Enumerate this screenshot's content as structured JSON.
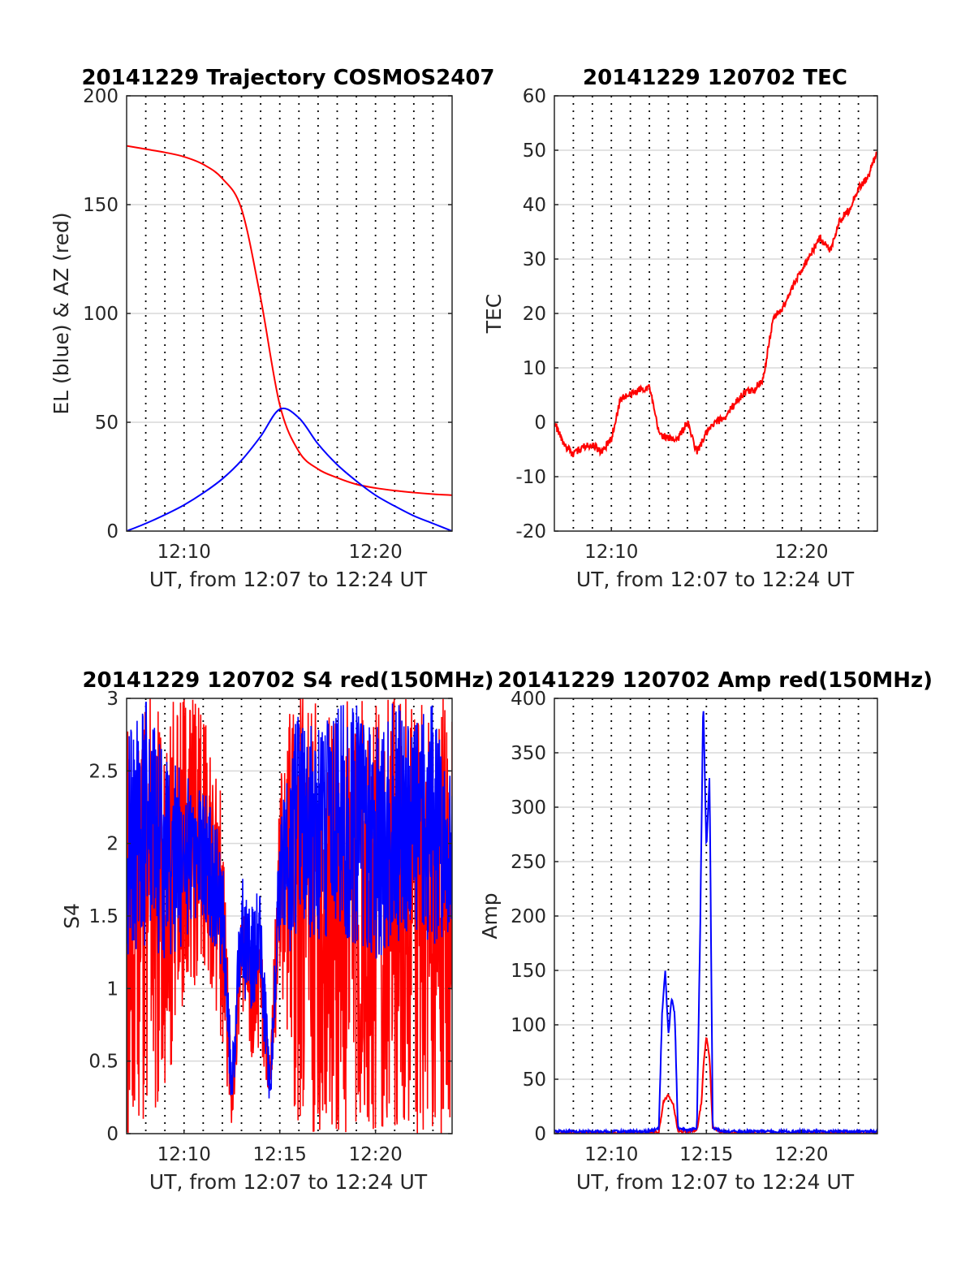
{
  "figure": {
    "colors": {
      "red": "#ff0000",
      "blue": "#0000ff",
      "axis": "#262626",
      "grid": "#d9d9d9"
    }
  },
  "chart_data": [
    {
      "type": "line",
      "title": "20141229 Trajectory COSMOS2407",
      "xlabel": "UT, from 12:07 to 12:24 UT",
      "ylabel": "EL (blue) & AZ (red)",
      "xlim": [
        "12:07",
        "12:24"
      ],
      "ylim": [
        0,
        200
      ],
      "xticks": [
        "12:10",
        "12:20"
      ],
      "yticks": [
        0,
        50,
        100,
        150,
        200
      ],
      "grid": "vertical dotted each minute, horizontal at y ticks",
      "series": [
        {
          "color": "red",
          "x": [
            "12:07",
            "12:08",
            "12:09",
            "12:10",
            "12:11",
            "12:12",
            "12:13",
            "12:14",
            "12:15",
            "12:16",
            "12:17",
            "12:18",
            "12:19",
            "12:20",
            "12:21",
            "12:22",
            "12:23",
            "12:24"
          ],
          "y": [
            177,
            175.5,
            174,
            172,
            168.5,
            162,
            148,
            107,
            58,
            36.5,
            28.5,
            24.5,
            21.5,
            19.8,
            18.6,
            17.7,
            17.0,
            16.5
          ]
        },
        {
          "color": "blue",
          "x": [
            "12:07",
            "12:08",
            "12:09",
            "12:10",
            "12:11",
            "12:12",
            "12:13",
            "12:14",
            "12:15",
            "12:16",
            "12:17",
            "12:18",
            "12:19",
            "12:20",
            "12:21",
            "12:22",
            "12:23",
            "12:24"
          ],
          "y": [
            0,
            3.5,
            7.5,
            12,
            17.5,
            24,
            32.5,
            43.5,
            56,
            52,
            40,
            30.5,
            23,
            16.5,
            11.5,
            7,
            3.5,
            0
          ]
        }
      ]
    },
    {
      "type": "line",
      "title": "20141229 120702 TEC",
      "xlabel": "UT, from 12:07 to 12:24 UT",
      "ylabel": "TEC",
      "xlim": [
        "12:07",
        "12:24"
      ],
      "ylim": [
        -20,
        60
      ],
      "xticks": [
        "12:10",
        "12:20"
      ],
      "yticks": [
        -20,
        -10,
        0,
        10,
        20,
        30,
        40,
        50,
        60
      ],
      "series": [
        {
          "color": "red",
          "x": [
            "12:07",
            "12:07:30",
            "12:08",
            "12:08:30",
            "12:09",
            "12:09:30",
            "12:10",
            "12:10:30",
            "12:11",
            "12:11:30",
            "12:12",
            "12:12:30",
            "12:13",
            "12:13:30",
            "12:14",
            "12:14:30",
            "12:15",
            "12:15:30",
            "12:16",
            "12:16:30",
            "12:17",
            "12:17:30",
            "12:18",
            "12:18:30",
            "12:19",
            "12:19:30",
            "12:20",
            "12:20:30",
            "12:21",
            "12:21:30",
            "12:22",
            "12:22:30",
            "12:23",
            "12:23:30",
            "12:24"
          ],
          "y": [
            0,
            -4,
            -6,
            -4.5,
            -4,
            -5.5,
            -3,
            4.5,
            5,
            6,
            6.5,
            -2,
            -3,
            -3,
            0,
            -5.5,
            -2,
            0,
            1,
            3.5,
            5.5,
            6,
            8,
            19,
            21,
            24.5,
            28,
            31,
            34,
            31.5,
            37,
            39,
            43,
            45,
            50
          ]
        }
      ]
    },
    {
      "type": "line",
      "title": "20141229 120702 S4 red(150MHz)",
      "xlabel": "UT, from 12:07 to 12:24 UT",
      "ylabel": "S4",
      "xlim": [
        "12:07",
        "12:24"
      ],
      "ylim": [
        0,
        3
      ],
      "xticks": [
        "12:10",
        "12:15",
        "12:20"
      ],
      "yticks": [
        0,
        0.5,
        1,
        1.5,
        2,
        2.5,
        3
      ],
      "series": [
        {
          "color": "red",
          "x": [
            "12:07",
            "12:08",
            "12:09",
            "12:10",
            "12:11",
            "12:12",
            "12:12:30",
            "12:13",
            "12:13:30",
            "12:14",
            "12:14:30",
            "12:15",
            "12:15:30",
            "12:16",
            "12:17",
            "12:18",
            "12:19",
            "12:20",
            "12:21",
            "12:22",
            "12:23",
            "12:24"
          ],
          "y_range": [
            [
              0,
              3
            ],
            [
              0,
              3
            ],
            [
              0.3,
              3
            ],
            [
              0.8,
              3
            ],
            [
              1.2,
              3
            ],
            [
              0.6,
              2.3
            ],
            [
              0.05,
              0.3
            ],
            [
              0.9,
              1.6
            ],
            [
              0.5,
              1.3
            ],
            [
              0.6,
              1.4
            ],
            [
              0.2,
              0.5
            ],
            [
              1.0,
              2.4
            ],
            [
              0.3,
              3
            ],
            [
              0,
              3
            ],
            [
              0,
              3
            ],
            [
              0,
              3
            ],
            [
              0,
              3
            ],
            [
              0,
              3
            ],
            [
              0,
              3
            ],
            [
              0,
              3
            ],
            [
              0,
              3
            ],
            [
              0,
              3
            ]
          ]
        },
        {
          "color": "blue",
          "x": [
            "12:07",
            "12:08",
            "12:09",
            "12:10",
            "12:11",
            "12:12",
            "12:12:30",
            "12:13",
            "12:13:30",
            "12:14",
            "12:14:30",
            "12:15",
            "12:15:30",
            "12:16",
            "12:17",
            "12:18",
            "12:19",
            "12:20",
            "12:21",
            "12:22",
            "12:23",
            "12:24"
          ],
          "y_range": [
            [
              1.2,
              2.8
            ],
            [
              1.3,
              3
            ],
            [
              1.2,
              2.6
            ],
            [
              1.3,
              2.5
            ],
            [
              1.5,
              2.4
            ],
            [
              1.1,
              2.0
            ],
            [
              0.15,
              0.5
            ],
            [
              1.0,
              1.8
            ],
            [
              0.8,
              1.6
            ],
            [
              0.9,
              1.7
            ],
            [
              0.15,
              0.4
            ],
            [
              1.4,
              2.2
            ],
            [
              1.2,
              2.6
            ],
            [
              1.4,
              3
            ],
            [
              1.3,
              2.8
            ],
            [
              1.4,
              3
            ],
            [
              1.3,
              3
            ],
            [
              1.2,
              2.8
            ],
            [
              1.3,
              3
            ],
            [
              1.4,
              2.8
            ],
            [
              1.3,
              3
            ],
            [
              1.4,
              2.5
            ]
          ]
        }
      ]
    },
    {
      "type": "line",
      "title": "20141229 120702 Amp red(150MHz)",
      "xlabel": "UT, from 12:07 to 12:24 UT",
      "ylabel": "Amp",
      "xlim": [
        "12:07",
        "12:24"
      ],
      "ylim": [
        0,
        400
      ],
      "xticks": [
        "12:10",
        "12:15",
        "12:20"
      ],
      "yticks": [
        0,
        50,
        100,
        150,
        200,
        250,
        300,
        350,
        400
      ],
      "series": [
        {
          "color": "red",
          "x": [
            "12:07",
            "12:12",
            "12:12:30",
            "12:12:45",
            "12:13",
            "12:13:15",
            "12:13:30",
            "12:14",
            "12:14:30",
            "12:14:45",
            "12:14:50",
            "12:15",
            "12:15:10",
            "12:15:20",
            "12:16",
            "12:24"
          ],
          "y": [
            0,
            0,
            2,
            30,
            35,
            28,
            3,
            1,
            3,
            30,
            60,
            90,
            70,
            5,
            0,
            0
          ]
        },
        {
          "color": "blue",
          "x": [
            "12:07",
            "12:12",
            "12:12:30",
            "12:12:40",
            "12:12:50",
            "12:13",
            "12:13:10",
            "12:13:20",
            "12:13:30",
            "12:14",
            "12:14:30",
            "12:14:40",
            "12:14:50",
            "12:15",
            "12:15:10",
            "12:15:20",
            "12:16",
            "12:24"
          ],
          "y": [
            2,
            2,
            5,
            110,
            150,
            90,
            125,
            110,
            5,
            3,
            5,
            180,
            400,
            260,
            330,
            5,
            2,
            2
          ]
        }
      ]
    }
  ]
}
